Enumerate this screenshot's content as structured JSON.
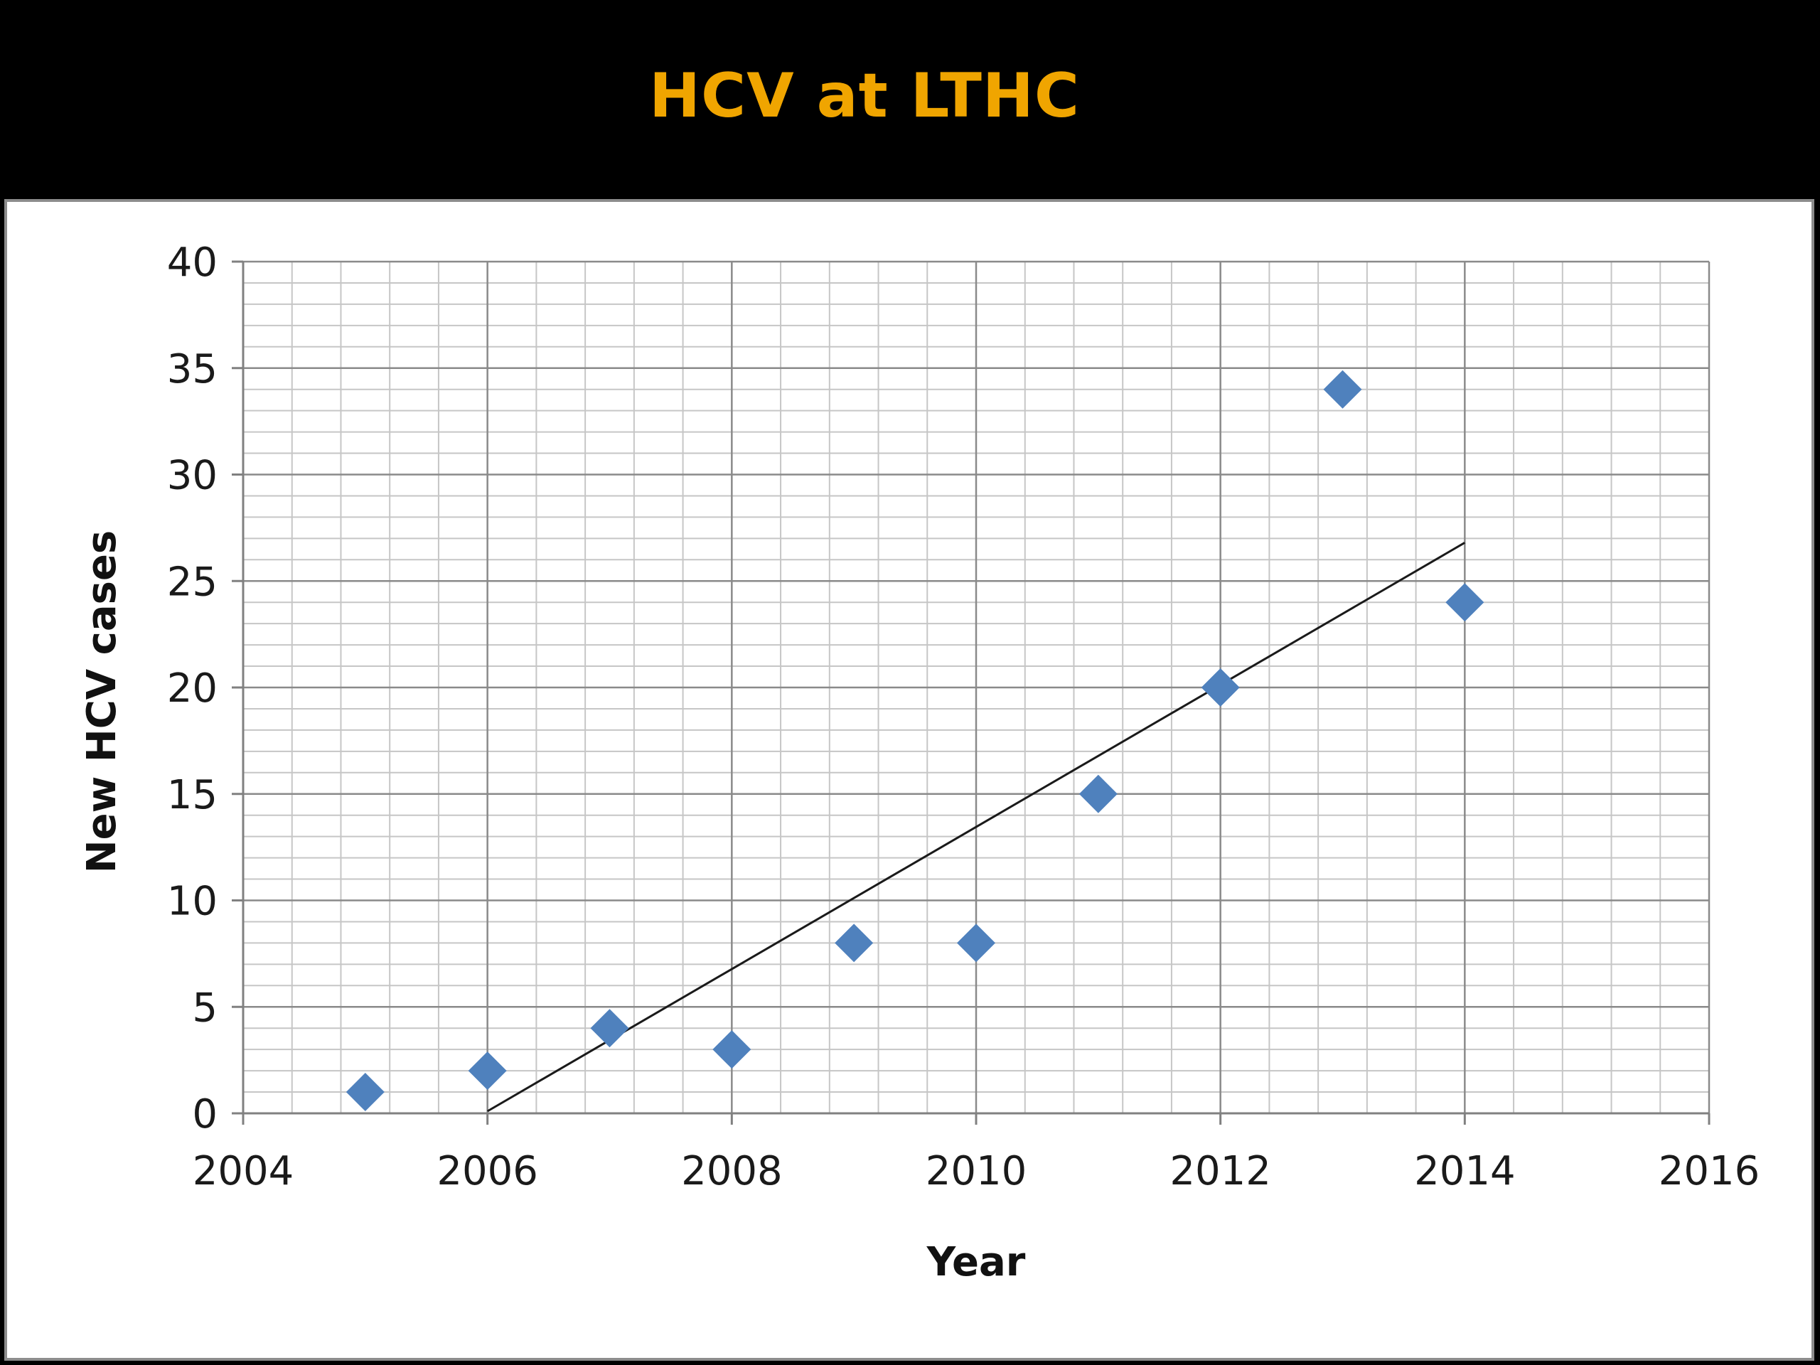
{
  "slide": {
    "title": "HCV at LTHC"
  },
  "colors": {
    "title": "#f0a500",
    "marker": "#4f81bd",
    "trendline": "#1a1a1a",
    "grid_major": "#8a8a8a",
    "grid_minor": "#c6c6c6"
  },
  "chart_data": {
    "type": "scatter",
    "title": "",
    "xlabel": "Year",
    "ylabel": "New HCV cases",
    "xlim": [
      2004,
      2016
    ],
    "ylim": [
      0,
      40
    ],
    "xticks": [
      2004,
      2006,
      2008,
      2010,
      2012,
      2014,
      2016
    ],
    "yticks": [
      0,
      5,
      10,
      15,
      20,
      25,
      30,
      35,
      40
    ],
    "grid": true,
    "legend": "none",
    "series": [
      {
        "marker": "diamond",
        "x": [
          2005,
          2006,
          2007,
          2008,
          2009,
          2010,
          2011,
          2012,
          2013,
          2014
        ],
        "y": [
          1,
          2,
          4,
          3,
          8,
          8,
          15,
          20,
          34,
          24
        ]
      }
    ],
    "trendline": {
      "type": "linear",
      "x": [
        2006,
        2014
      ],
      "y": [
        0.1,
        26.8
      ]
    }
  }
}
